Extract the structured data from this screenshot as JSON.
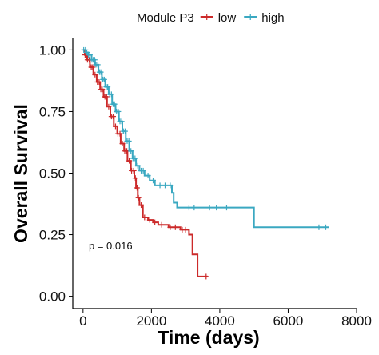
{
  "chart_data": {
    "type": "line",
    "xlabel": "Time (days)",
    "ylabel": "Overall Survival",
    "xlim": [
      -300,
      8000
    ],
    "ylim": [
      -0.05,
      1.05
    ],
    "x_ticks": [
      0,
      2000,
      4000,
      6000,
      8000
    ],
    "x_tick_labels": [
      "0",
      "2000",
      "4000",
      "6000",
      "8000"
    ],
    "y_ticks": [
      0,
      0.25,
      0.5,
      0.75,
      1.0
    ],
    "y_tick_labels": [
      "0.00",
      "0.25",
      "0.50",
      "0.75",
      "1.00"
    ],
    "grid": false,
    "legend": {
      "title": "Module P3",
      "position": "top"
    },
    "annotation": "p = 0.016",
    "series": [
      {
        "name": "low",
        "color": "#cc2a2a",
        "steps": [
          [
            0,
            1.0
          ],
          [
            50,
            0.98
          ],
          [
            120,
            0.96
          ],
          [
            200,
            0.93
          ],
          [
            300,
            0.9
          ],
          [
            400,
            0.87
          ],
          [
            500,
            0.84
          ],
          [
            600,
            0.81
          ],
          [
            700,
            0.77
          ],
          [
            800,
            0.73
          ],
          [
            900,
            0.69
          ],
          [
            1000,
            0.66
          ],
          [
            1100,
            0.62
          ],
          [
            1200,
            0.59
          ],
          [
            1300,
            0.55
          ],
          [
            1400,
            0.51
          ],
          [
            1500,
            0.48
          ],
          [
            1550,
            0.44
          ],
          [
            1600,
            0.4
          ],
          [
            1650,
            0.37
          ],
          [
            1750,
            0.32
          ],
          [
            1900,
            0.31
          ],
          [
            2050,
            0.3
          ],
          [
            2200,
            0.29
          ],
          [
            2500,
            0.28
          ],
          [
            2850,
            0.27
          ],
          [
            3100,
            0.25
          ],
          [
            3200,
            0.17
          ],
          [
            3350,
            0.08
          ],
          [
            3650,
            0.08
          ]
        ],
        "censor_x": [
          60,
          130,
          180,
          240,
          280,
          350,
          420,
          470,
          520,
          560,
          640,
          690,
          750,
          830,
          880,
          950,
          1020,
          1080,
          1150,
          1220,
          1280,
          1350,
          1420,
          1480,
          1530,
          1580,
          1620,
          1700,
          1800,
          1950,
          2100,
          2300,
          2550,
          2700,
          2900,
          3000,
          3600
        ]
      },
      {
        "name": "high",
        "color": "#3aa8c1",
        "steps": [
          [
            0,
            1.0
          ],
          [
            80,
            0.99
          ],
          [
            150,
            0.98
          ],
          [
            250,
            0.96
          ],
          [
            350,
            0.94
          ],
          [
            450,
            0.91
          ],
          [
            550,
            0.88
          ],
          [
            650,
            0.85
          ],
          [
            750,
            0.82
          ],
          [
            850,
            0.78
          ],
          [
            950,
            0.75
          ],
          [
            1050,
            0.71
          ],
          [
            1150,
            0.67
          ],
          [
            1250,
            0.63
          ],
          [
            1350,
            0.59
          ],
          [
            1450,
            0.56
          ],
          [
            1550,
            0.53
          ],
          [
            1650,
            0.51
          ],
          [
            1800,
            0.49
          ],
          [
            1950,
            0.47
          ],
          [
            2100,
            0.45
          ],
          [
            2600,
            0.42
          ],
          [
            2650,
            0.38
          ],
          [
            2750,
            0.36
          ],
          [
            4950,
            0.36
          ],
          [
            5000,
            0.28
          ],
          [
            7200,
            0.28
          ]
        ],
        "censor_x": [
          20,
          70,
          110,
          160,
          200,
          260,
          300,
          340,
          380,
          430,
          480,
          520,
          580,
          620,
          680,
          720,
          780,
          830,
          880,
          920,
          980,
          1030,
          1080,
          1130,
          1180,
          1230,
          1290,
          1340,
          1400,
          1460,
          1520,
          1600,
          1700,
          1760,
          1900,
          2050,
          2250,
          2400,
          2550,
          3100,
          3250,
          3700,
          3900,
          4200,
          6900,
          7100
        ]
      }
    ]
  }
}
